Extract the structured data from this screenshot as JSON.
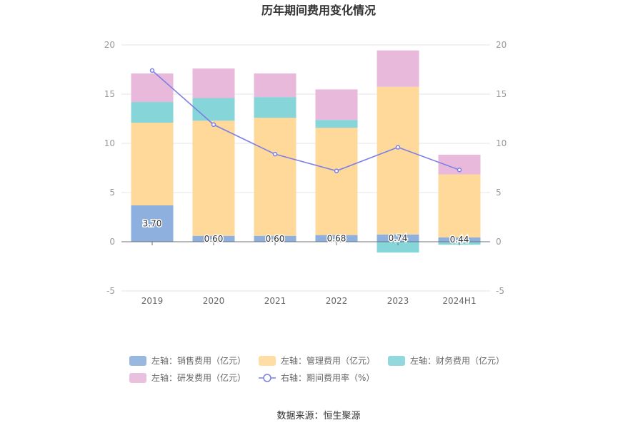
{
  "chart_data": {
    "type": "bar",
    "title": "历年期间费用变化情况",
    "categories": [
      "2019",
      "2020",
      "2021",
      "2022",
      "2023",
      "2024H1"
    ],
    "stacked": true,
    "left_axis": {
      "ylim": [
        -5,
        20
      ],
      "ticks": [
        -5,
        0,
        5,
        10,
        15,
        20
      ]
    },
    "right_axis": {
      "ylim": [
        -5,
        20
      ],
      "ticks": [
        -5,
        0,
        5,
        10,
        15,
        20
      ]
    },
    "series": [
      {
        "name": "左轴：销售费用（亿元）",
        "type": "bar",
        "axis": "left",
        "color": "#8eb0de",
        "values": [
          3.7,
          0.6,
          0.6,
          0.68,
          0.74,
          0.44
        ],
        "labels": [
          "3.70",
          "0.60",
          "0.60",
          "0.68",
          "0.74",
          "0.44"
        ]
      },
      {
        "name": "左轴：管理费用（亿元）",
        "type": "bar",
        "axis": "left",
        "color": "#ffd99a",
        "values": [
          8.4,
          11.7,
          12.0,
          10.9,
          15.0,
          6.4
        ]
      },
      {
        "name": "左轴：财务费用（亿元）",
        "type": "bar",
        "axis": "left",
        "color": "#86d5d9",
        "values": [
          2.1,
          2.3,
          2.1,
          0.8,
          -1.1,
          -0.3
        ]
      },
      {
        "name": "左轴：研发费用（亿元）",
        "type": "bar",
        "axis": "left",
        "color": "#e8b9db",
        "values": [
          2.9,
          3.0,
          2.4,
          3.1,
          3.7,
          2.0
        ]
      },
      {
        "name": "右轴：期间费用率（%）",
        "type": "line",
        "axis": "right",
        "color": "#7b7fe8",
        "values": [
          17.4,
          11.9,
          8.9,
          7.2,
          9.6,
          7.3
        ]
      }
    ]
  },
  "source_text": "数据来源：恒生聚源"
}
